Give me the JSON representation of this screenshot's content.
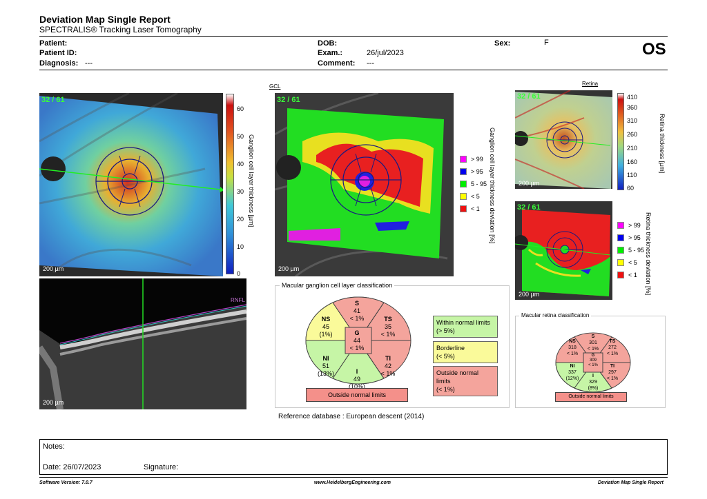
{
  "report": {
    "title": "Deviation Map Single Report",
    "subtitle": "SPECTRALIS® Tracking Laser Tomography",
    "eye": "OS"
  },
  "patient": {
    "patient_label": "Patient:",
    "patient_id_label": "Patient ID:",
    "diagnosis_label": "Diagnosis:",
    "diagnosis_value": "---",
    "dob_label": "DOB:",
    "exam_label": "Exam.:",
    "exam_value": "26/jul/2023",
    "comment_label": "Comment:",
    "comment_value": "---",
    "sex_label": "Sex:",
    "sex_value": "F"
  },
  "gcl_map": {
    "corner_label": "32 / 61",
    "scale": "200 µm",
    "colorbar_ticks": [
      "60",
      "50",
      "40",
      "30",
      "20",
      "10",
      "0"
    ],
    "colorbar_label": "Ganglion cell layer thickness [µm]"
  },
  "gcl_deviation": {
    "section_title": "GCL",
    "corner_label": "32 / 61",
    "scale": "200 µm",
    "axis_label": "Ganglion cell layer thickness deviation [%]",
    "legend": [
      {
        "label": "> 99",
        "color": "#ff00ff"
      },
      {
        "label": "> 95",
        "color": "#0000ee"
      },
      {
        "label": "5 - 95",
        "color": "#00ee00"
      },
      {
        "label": "< 5",
        "color": "#ffff00"
      },
      {
        "label": "< 1",
        "color": "#ee1111"
      }
    ]
  },
  "oct_scan": {
    "layer_label": "RNFL",
    "scale": "200 µm"
  },
  "retina_map": {
    "section_title": "Retina",
    "corner_label": "32 / 61",
    "scale": "200 µm",
    "colorbar_ticks": [
      "410",
      "360",
      "310",
      "260",
      "210",
      "160",
      "110",
      "60"
    ],
    "colorbar_label": "Retina thickness [µm]"
  },
  "retina_deviation": {
    "corner_label": "32 / 61",
    "scale": "200 µm",
    "axis_label": "Retina thickness deviation [%]",
    "legend": [
      {
        "label": "> 99",
        "color": "#ff00ff"
      },
      {
        "label": "> 95",
        "color": "#0000ee"
      },
      {
        "label": "5 - 95",
        "color": "#00ee00"
      },
      {
        "label": "< 5",
        "color": "#ffff00"
      },
      {
        "label": "< 1",
        "color": "#ee1111"
      }
    ]
  },
  "gcl_classification": {
    "title": "Macular ganglion cell layer classification",
    "sectors": {
      "S": {
        "name": "S",
        "value": "41",
        "pct": "< 1%"
      },
      "TS": {
        "name": "TS",
        "value": "35",
        "pct": "< 1%"
      },
      "TI": {
        "name": "TI",
        "value": "42",
        "pct": "< 1%"
      },
      "I": {
        "name": "I",
        "value": "49",
        "pct": "(10%)"
      },
      "NI": {
        "name": "NI",
        "value": "51",
        "pct": "(13%)"
      },
      "NS": {
        "name": "NS",
        "value": "45",
        "pct": "(1%)"
      },
      "G": {
        "name": "G",
        "value": "44",
        "pct": "< 1%"
      }
    },
    "key": {
      "within": {
        "line1": "Within normal limits",
        "line2": "(> 5%)"
      },
      "borderline": {
        "line1": "Borderline",
        "line2": "(< 5%)"
      },
      "outside": {
        "line1": "Outside normal limits",
        "line2": "(< 1%)"
      }
    },
    "result": "Outside normal limits",
    "colors": {
      "normal": "#c6f5a6",
      "border": "#fafa9a",
      "outside": "#f4a49c"
    }
  },
  "retina_classification": {
    "title": "Macular retina classification",
    "sectors": {
      "S": {
        "name": "S",
        "value": "301",
        "pct": "< 1%"
      },
      "TS": {
        "name": "TS",
        "value": "272",
        "pct": "< 1%"
      },
      "TI": {
        "name": "TI",
        "value": "297",
        "pct": "< 1%"
      },
      "I": {
        "name": "I",
        "value": "329",
        "pct": "(8%)"
      },
      "NI": {
        "name": "NI",
        "value": "337",
        "pct": "(12%)"
      },
      "NS": {
        "name": "NS",
        "value": "318",
        "pct": "< 1%"
      },
      "G": {
        "name": "G",
        "value": "309",
        "pct": "< 1%"
      }
    },
    "result": "Outside normal limits"
  },
  "reference": {
    "label": "Reference database",
    "value": "European descent (2014)"
  },
  "notes": {
    "label": "Notes:",
    "date_label": "Date:",
    "date_value": "26/07/2023",
    "signature_label": "Signature:"
  },
  "footer": {
    "software": "Software Version: 7.0.7",
    "url": "www.HeidelbergEngineering.com",
    "report_name": "Deviation Map Single Report"
  }
}
